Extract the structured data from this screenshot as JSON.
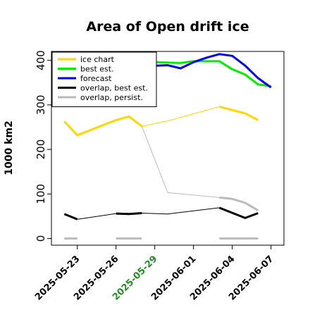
{
  "chart_data": {
    "type": "line",
    "title": "Area of Open drift ice",
    "xlabel": "",
    "ylabel": "1000 km2",
    "x_domain": [
      "2025-05-21",
      "2025-06-08"
    ],
    "ylim": [
      -15,
      420
    ],
    "yticks": [
      0,
      100,
      200,
      300,
      400
    ],
    "xticks": [
      {
        "date": "2025-05-23",
        "label": "2025-05-23",
        "color": "#000000"
      },
      {
        "date": "2025-05-26",
        "label": "2025-05-26",
        "color": "#000000"
      },
      {
        "date": "2025-05-29",
        "label": "2025-05-29",
        "color": "#228B22"
      },
      {
        "date": "2025-06-01",
        "label": "2025-06-01",
        "color": "#000000"
      },
      {
        "date": "2025-06-04",
        "label": "2025-06-04",
        "color": "#000000"
      },
      {
        "date": "2025-06-07",
        "label": "2025-06-07",
        "color": "#000000"
      }
    ],
    "legend": {
      "position": "top-left"
    },
    "series": [
      {
        "name": "ice chart",
        "color": "#FFD700",
        "width": 3,
        "segments": [
          [
            [
              "2025-05-22",
              263
            ],
            [
              "2025-05-23",
              232
            ],
            [
              "2025-05-26",
              266
            ],
            [
              "2025-05-27",
              274
            ],
            [
              "2025-05-28",
              252
            ]
          ],
          [
            [
              "2025-06-03",
              296
            ],
            [
              "2025-06-05",
              281
            ],
            [
              "2025-06-06",
              266
            ]
          ]
        ]
      },
      {
        "name": "",
        "color": "#FFD700",
        "width": 1,
        "segments": [
          [
            [
              "2025-05-28",
              252
            ],
            [
              "2025-05-30",
              264
            ],
            [
              "2025-06-03",
              296
            ]
          ]
        ]
      },
      {
        "name": "best est.",
        "color": "#00EE00",
        "width": 3,
        "segments": [
          [
            [
              "2025-05-22",
              358
            ],
            [
              "2025-05-29",
              396
            ],
            [
              "2025-05-31",
              394
            ],
            [
              "2025-06-01",
              398
            ],
            [
              "2025-06-03",
              398
            ],
            [
              "2025-06-04",
              380
            ],
            [
              "2025-06-05",
              368
            ],
            [
              "2025-06-06",
              346
            ],
            [
              "2025-06-07",
              342
            ]
          ]
        ]
      },
      {
        "name": "forecast",
        "color": "#0000EE",
        "width": 3,
        "segments": [
          [
            [
              "2025-05-22",
              366
            ],
            [
              "2025-05-29",
              388
            ],
            [
              "2025-05-30",
              389
            ],
            [
              "2025-05-31",
              382
            ],
            [
              "2025-06-01",
              396
            ],
            [
              "2025-06-02",
              406
            ],
            [
              "2025-06-03",
              414
            ],
            [
              "2025-06-04",
              410
            ],
            [
              "2025-06-05",
              388
            ],
            [
              "2025-06-06",
              360
            ],
            [
              "2025-06-07",
              339
            ]
          ]
        ]
      },
      {
        "name": "overlap, best est.",
        "color": "#000000",
        "width": 3,
        "segments": [
          [
            [
              "2025-05-22",
              55
            ],
            [
              "2025-05-23",
              43
            ]
          ],
          [
            [
              "2025-05-26",
              56
            ],
            [
              "2025-05-27",
              55
            ],
            [
              "2025-05-28",
              57
            ]
          ],
          [
            [
              "2025-06-03",
              69
            ],
            [
              "2025-06-05",
              46
            ],
            [
              "2025-06-06",
              57
            ]
          ]
        ]
      },
      {
        "name": "",
        "color": "#000000",
        "width": 1,
        "segments": [
          [
            [
              "2025-05-23",
              43
            ],
            [
              "2025-05-26",
              56
            ]
          ],
          [
            [
              "2025-05-28",
              57
            ],
            [
              "2025-05-30",
              55
            ],
            [
              "2025-06-03",
              69
            ]
          ]
        ]
      },
      {
        "name": "overlap, persist.",
        "color": "#BBBBBB",
        "width": 3,
        "segments": [
          [
            [
              "2025-05-22",
              0
            ],
            [
              "2025-05-23",
              0
            ]
          ],
          [
            [
              "2025-05-26",
              0
            ],
            [
              "2025-05-28",
              0
            ]
          ],
          [
            [
              "2025-06-03",
              92
            ],
            [
              "2025-06-04",
              89
            ],
            [
              "2025-06-05",
              80
            ],
            [
              "2025-06-06",
              63
            ]
          ],
          [
            [
              "2025-06-03",
              0
            ],
            [
              "2025-06-06",
              0
            ]
          ]
        ]
      },
      {
        "name": "",
        "color": "#BBBBBB",
        "width": 1,
        "segments": [
          [
            [
              "2025-05-28",
              252
            ],
            [
              "2025-05-30",
              103
            ],
            [
              "2025-06-03",
              92
            ]
          ]
        ]
      }
    ],
    "grid": false
  }
}
